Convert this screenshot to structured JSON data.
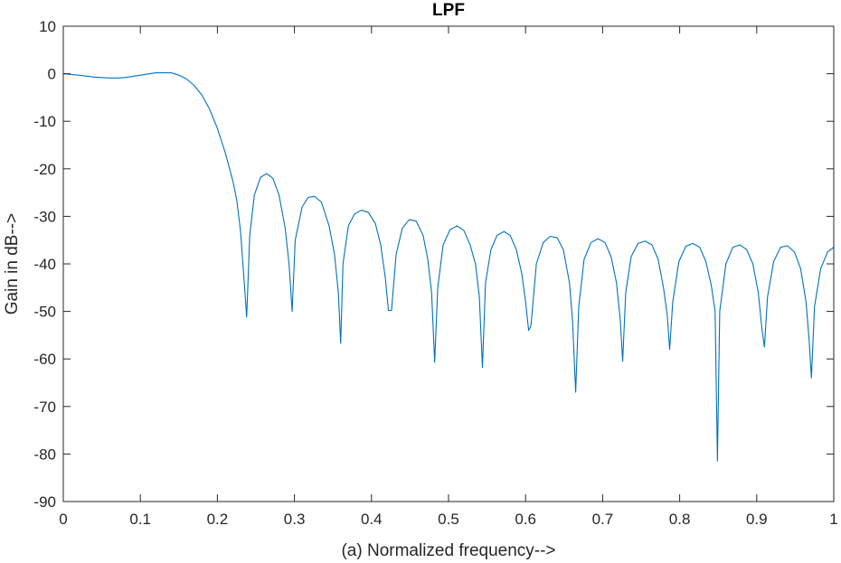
{
  "chart_data": {
    "type": "line",
    "title": "LPF",
    "xlabel": "(a) Normalized frequency-->",
    "ylabel": "Gain in dB-->",
    "xlim": [
      0,
      1
    ],
    "ylim": [
      -90,
      10
    ],
    "xticks": [
      "0",
      "0.1",
      "0.2",
      "0.3",
      "0.4",
      "0.5",
      "0.6",
      "0.7",
      "0.8",
      "0.9",
      "1"
    ],
    "yticks": [
      "10",
      "0",
      "-10",
      "-20",
      "-30",
      "-40",
      "-50",
      "-60",
      "-70",
      "-80",
      "-90"
    ],
    "grid": false,
    "box": true,
    "series": [
      {
        "color": "#0072bd",
        "x": [
          0,
          0.02,
          0.04,
          0.06,
          0.07,
          0.08,
          0.1,
          0.12,
          0.14,
          0.15,
          0.16,
          0.17,
          0.18,
          0.19,
          0.2,
          0.21,
          0.22,
          0.225,
          0.23,
          0.234,
          0.238,
          0.242,
          0.248,
          0.256,
          0.264,
          0.272,
          0.28,
          0.288,
          0.293,
          0.297,
          0.301,
          0.31,
          0.318,
          0.326,
          0.335,
          0.345,
          0.352,
          0.357,
          0.36,
          0.363,
          0.37,
          0.378,
          0.387,
          0.396,
          0.405,
          0.412,
          0.418,
          0.422,
          0.426,
          0.432,
          0.44,
          0.449,
          0.458,
          0.467,
          0.473,
          0.478,
          0.482,
          0.486,
          0.493,
          0.502,
          0.511,
          0.52,
          0.528,
          0.535,
          0.54,
          0.544,
          0.548,
          0.555,
          0.563,
          0.572,
          0.58,
          0.588,
          0.595,
          0.6,
          0.604,
          0.607,
          0.614,
          0.623,
          0.632,
          0.641,
          0.649,
          0.657,
          0.661,
          0.665,
          0.669,
          0.676,
          0.685,
          0.694,
          0.703,
          0.711,
          0.718,
          0.723,
          0.726,
          0.73,
          0.737,
          0.746,
          0.755,
          0.764,
          0.772,
          0.779,
          0.784,
          0.787,
          0.791,
          0.799,
          0.808,
          0.817,
          0.826,
          0.834,
          0.841,
          0.846,
          0.849,
          0.852,
          0.86,
          0.869,
          0.878,
          0.887,
          0.895,
          0.902,
          0.907,
          0.91,
          0.914,
          0.922,
          0.931,
          0.94,
          0.949,
          0.957,
          0.964,
          0.968,
          0.971,
          0.975,
          0.983,
          0.992,
          1.0
        ],
        "y": [
          0,
          -0.3,
          -0.7,
          -0.9,
          -0.9,
          -0.8,
          -0.3,
          0.2,
          0.2,
          -0.3,
          -1.1,
          -2.5,
          -4.5,
          -7.5,
          -11.5,
          -16.5,
          -22.5,
          -26.5,
          -33,
          -42,
          -51.2,
          -34,
          -25.5,
          -21.8,
          -21,
          -22,
          -25.5,
          -32.5,
          -40,
          -50,
          -35,
          -28,
          -26,
          -25.8,
          -27,
          -32,
          -38,
          -46,
          -56.7,
          -40,
          -32,
          -29.5,
          -28.7,
          -29.2,
          -31.5,
          -36,
          -43,
          -49.8,
          -49.8,
          -38,
          -32.5,
          -30.7,
          -31,
          -34,
          -39,
          -46,
          -60.7,
          -45,
          -36,
          -32.8,
          -32,
          -33,
          -36,
          -40,
          -47,
          -61.8,
          -44,
          -37,
          -34,
          -33.2,
          -34,
          -37,
          -42,
          -48,
          -54,
          -53,
          -40,
          -35.5,
          -34.2,
          -34.5,
          -37,
          -44,
          -52,
          -67,
          -49,
          -39,
          -35.5,
          -34.7,
          -35.5,
          -38.5,
          -44,
          -52,
          -60.5,
          -46,
          -38.5,
          -35.7,
          -35.2,
          -36,
          -39,
          -45,
          -51,
          -58,
          -48,
          -39.5,
          -36.3,
          -35.7,
          -36.5,
          -39.5,
          -44.5,
          -50,
          -81.5,
          -50,
          -40,
          -36.5,
          -36,
          -37,
          -40,
          -46,
          -54,
          -57.5,
          -47,
          -39.5,
          -36.5,
          -36.2,
          -37.5,
          -41,
          -48,
          -56,
          -64,
          -49,
          -41,
          -37.5,
          -36.5
        ]
      }
    ]
  }
}
